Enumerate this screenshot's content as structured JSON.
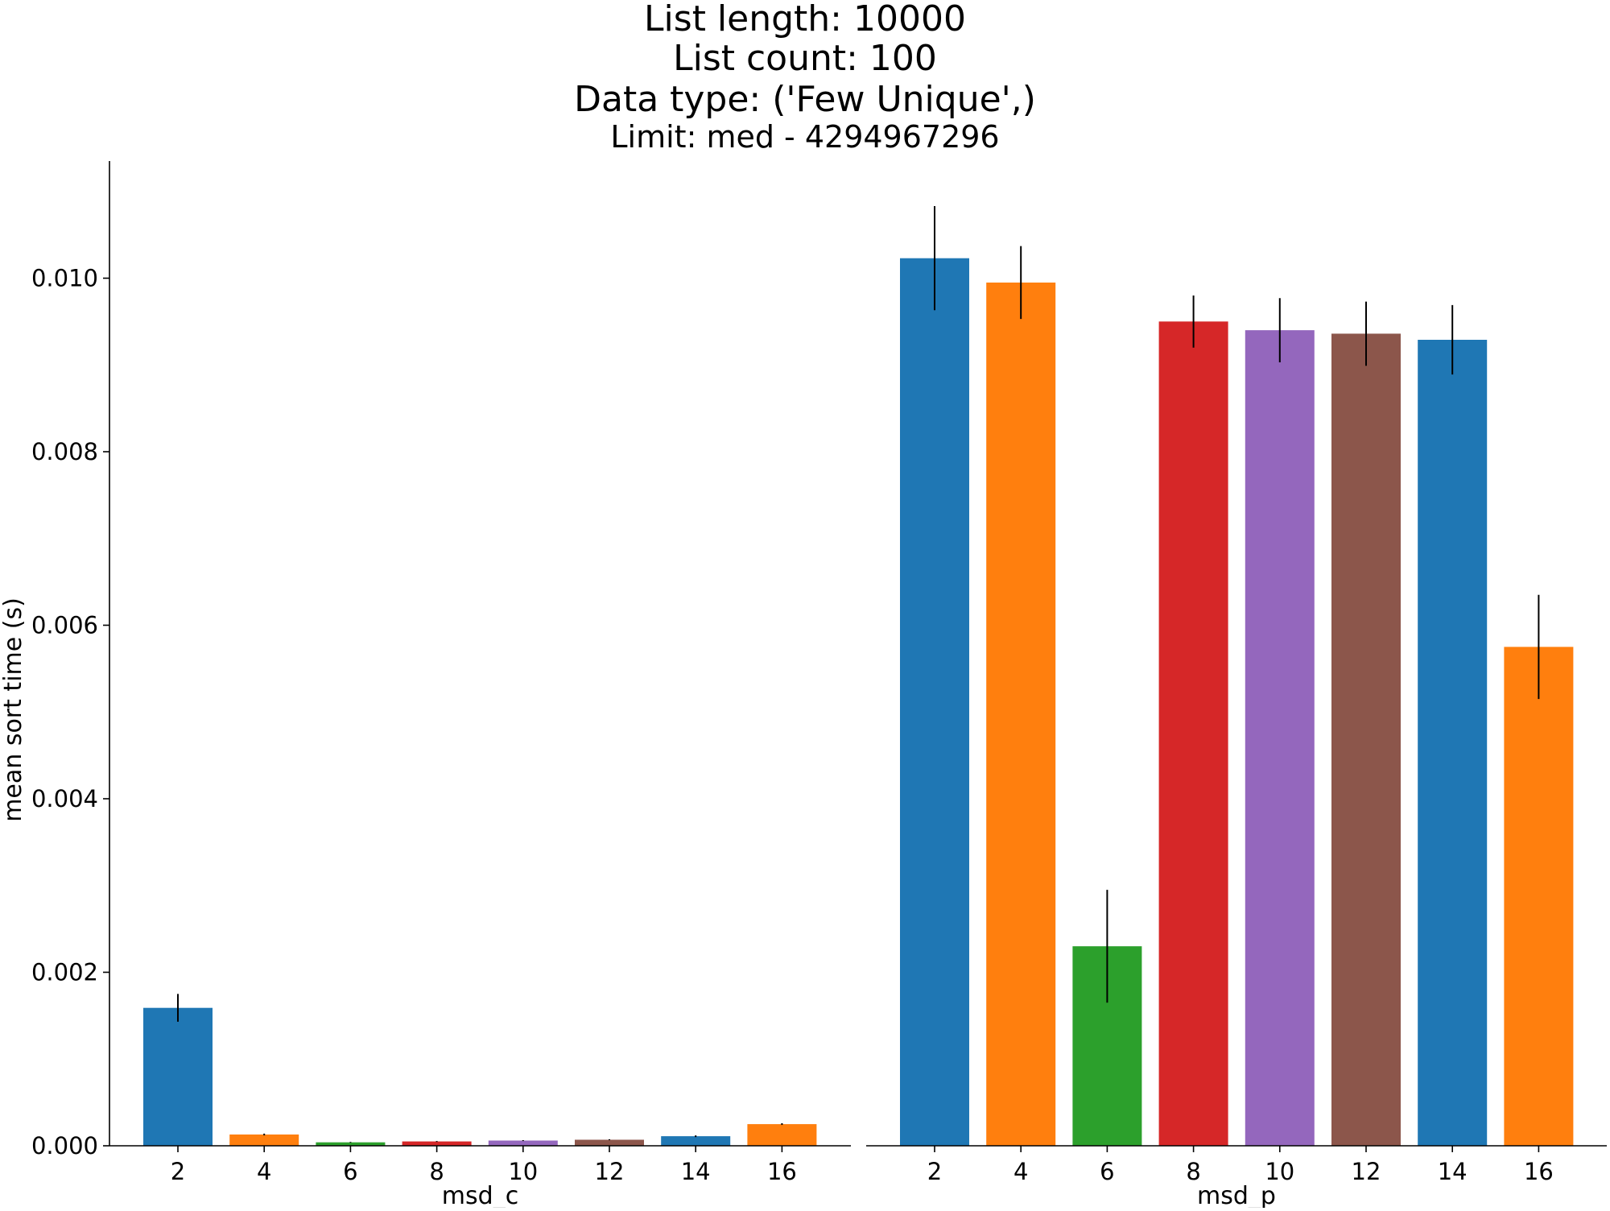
{
  "title": {
    "line1": "List length: 10000",
    "line2": "List count: 100",
    "line3": "Data type: ('Few Unique',)",
    "line4": "Limit: med - 4294967296"
  },
  "colors": {
    "palette": [
      "#1f77b4",
      "#ff7f0e",
      "#2ca02c",
      "#d62728",
      "#9467bd",
      "#8c564b",
      "#1f77b4",
      "#ff7f0e"
    ],
    "errorbar": "#000000",
    "axis": "#000000"
  },
  "chart_data": [
    {
      "type": "bar",
      "xlabel": "msd_c",
      "ylabel": "mean sort time (s)",
      "categories": [
        "2",
        "4",
        "6",
        "8",
        "10",
        "12",
        "14",
        "16"
      ],
      "values": [
        0.00159,
        0.00013,
        4e-05,
        5e-05,
        6e-05,
        7e-05,
        0.00011,
        0.00025
      ],
      "errors": [
        0.00016,
        1e-05,
        5e-06,
        5e-06,
        5e-06,
        5e-06,
        1e-05,
        1e-05
      ],
      "ylim": [
        0,
        0.01135
      ],
      "yticks": [
        "0.000",
        "0.002",
        "0.004",
        "0.006",
        "0.008",
        "0.010"
      ],
      "ytick_values": [
        0,
        0.002,
        0.004,
        0.006,
        0.008,
        0.01
      ],
      "grid": false,
      "error_bars": true
    },
    {
      "type": "bar",
      "xlabel": "msd_p",
      "ylabel": "",
      "categories": [
        "2",
        "4",
        "6",
        "8",
        "10",
        "12",
        "14",
        "16"
      ],
      "values": [
        0.01023,
        0.00995,
        0.0023,
        0.0095,
        0.0094,
        0.00936,
        0.00929,
        0.00575
      ],
      "errors": [
        0.0006,
        0.00042,
        0.00065,
        0.0003,
        0.00037,
        0.00037,
        0.0004,
        0.0006
      ],
      "ylim": [
        0,
        0.01135
      ],
      "grid": false,
      "error_bars": true
    }
  ]
}
